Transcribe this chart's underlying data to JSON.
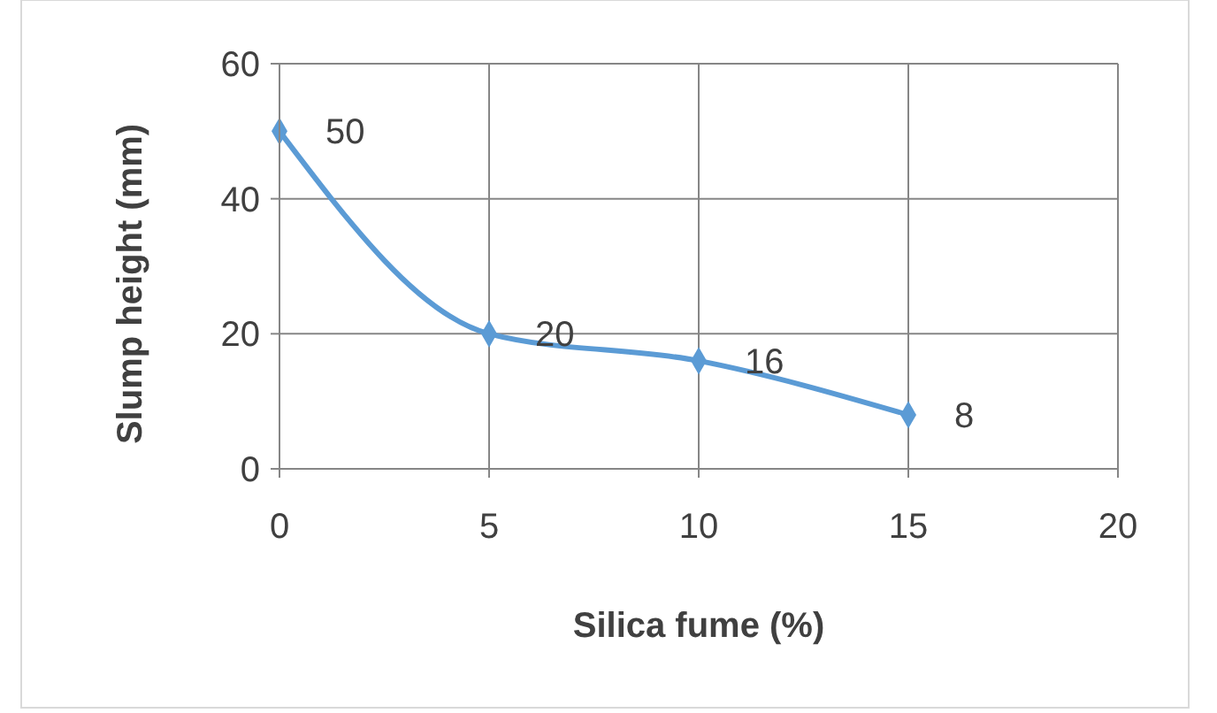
{
  "chart_data": {
    "type": "line",
    "xlabel": "Silica fume (%)",
    "ylabel": "Slump height (mm)",
    "x": [
      0,
      5,
      10,
      15
    ],
    "series": [
      {
        "color": "#5b9bd5",
        "values": [
          50,
          20,
          16,
          8
        ]
      }
    ],
    "xlim": [
      0,
      20
    ],
    "xticks": [
      0,
      5,
      10,
      15,
      20
    ],
    "ylim": [
      0,
      60
    ],
    "yticks": [
      0,
      20,
      40,
      60
    ],
    "grid": true,
    "marker": "diamond",
    "line_style": "solid",
    "data_labels": true
  }
}
